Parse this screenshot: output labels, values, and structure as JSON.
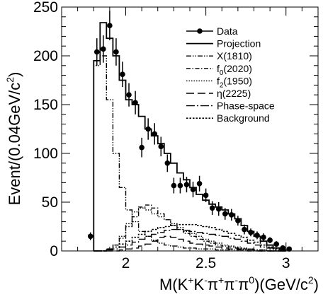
{
  "chart_data": {
    "type": "histogram",
    "xlabel": {
      "main": "M(K",
      "sup1": "+",
      "mid1": "K",
      "sup2": "-",
      "mid2": "π",
      "sup3": "+",
      "mid3": "π",
      "sup4": "-",
      "mid4": "π",
      "sup5": "0",
      "mid5": ")(GeV/c",
      "sup6": "2",
      "end": ")"
    },
    "ylabel": {
      "main": "Event/(0.04GeV/c",
      "sup": "2",
      "end": ")"
    },
    "xlim": [
      1.6,
      3.2
    ],
    "ylim": [
      0,
      250
    ],
    "xticks": [
      {
        "value": 2,
        "label": "2"
      },
      {
        "value": 2.5,
        "label": "2.5"
      },
      {
        "value": 3,
        "label": "3"
      }
    ],
    "yticks": [
      {
        "value": 0,
        "label": "0"
      },
      {
        "value": 50,
        "label": "50"
      },
      {
        "value": 100,
        "label": "100"
      },
      {
        "value": 150,
        "label": "150"
      },
      {
        "value": 200,
        "label": "200"
      },
      {
        "value": 250,
        "label": "250"
      }
    ],
    "bin_edges": [
      1.8,
      1.84,
      1.88,
      1.92,
      1.96,
      2.0,
      2.04,
      2.08,
      2.12,
      2.16,
      2.2,
      2.24,
      2.28,
      2.32,
      2.36,
      2.4,
      2.44,
      2.48,
      2.52,
      2.56,
      2.6,
      2.64,
      2.68,
      2.72,
      2.76,
      2.8,
      2.84,
      2.88,
      2.92,
      2.96,
      3.0
    ],
    "series": [
      {
        "name": "Data",
        "style": "points",
        "x": [
          1.78,
          1.82,
          1.86,
          1.9,
          1.94,
          1.98,
          2.02,
          2.06,
          2.1,
          2.14,
          2.18,
          2.22,
          2.26,
          2.3,
          2.34,
          2.38,
          2.42,
          2.46,
          2.5,
          2.54,
          2.58,
          2.62,
          2.66,
          2.7,
          2.74,
          2.78,
          2.82,
          2.86,
          2.9,
          2.94,
          2.98,
          3.02
        ],
        "y": [
          15,
          204,
          207,
          231,
          204,
          181,
          160,
          152,
          106,
          125,
          120,
          107,
          90,
          67,
          67,
          68,
          63,
          69,
          57,
          44,
          43,
          38,
          37,
          31,
          22,
          19,
          16,
          14,
          11,
          7,
          3,
          2
        ],
        "err": [
          4,
          14,
          14,
          15,
          14,
          13,
          12,
          12,
          10,
          11,
          11,
          10,
          9,
          8,
          8,
          8,
          8,
          8,
          7,
          7,
          7,
          6,
          6,
          5,
          5,
          4,
          4,
          4,
          3,
          3,
          2,
          1
        ]
      },
      {
        "name": "Projection",
        "style": "solid",
        "values": [
          195,
          234,
          218,
          200,
          175,
          155,
          150,
          138,
          125,
          118,
          110,
          100,
          90,
          80,
          73,
          65,
          58,
          52,
          48,
          45,
          42,
          38,
          33,
          26,
          20,
          15,
          10,
          6,
          3,
          1
        ]
      },
      {
        "name": "X(1810)",
        "style": "dash-dot-dot",
        "values": [
          190,
          200,
          155,
          100,
          65,
          42,
          30,
          20,
          15,
          11,
          8,
          6,
          5,
          4,
          3,
          3,
          2,
          2,
          2,
          1,
          1,
          1,
          1,
          1,
          0,
          0,
          0,
          0,
          0,
          0
        ]
      },
      {
        "name": "f_0(2020)",
        "style": "dash-dot",
        "values": [
          0,
          0,
          2,
          6,
          13,
          25,
          35,
          45,
          47,
          44,
          38,
          32,
          26,
          22,
          18,
          15,
          12,
          10,
          8,
          6,
          5,
          4,
          3,
          2,
          2,
          1,
          1,
          0,
          0,
          0
        ]
      },
      {
        "name": "f_2(1950)",
        "style": "dotted",
        "values": [
          0,
          0,
          2,
          6,
          15,
          28,
          40,
          44,
          42,
          38,
          35,
          32,
          28,
          24,
          20,
          18,
          15,
          12,
          10,
          8,
          6,
          5,
          4,
          3,
          2,
          1,
          1,
          0,
          0,
          0
        ]
      },
      {
        "name": "η(2225)",
        "style": "long-dash",
        "values": [
          0,
          0,
          0,
          0,
          1,
          2,
          3,
          5,
          7,
          10,
          14,
          15,
          14,
          12,
          10,
          8,
          7,
          6,
          5,
          4,
          3,
          2,
          2,
          1,
          1,
          0,
          0,
          0,
          0,
          0
        ]
      },
      {
        "name": "Phase-space",
        "style": "long-dash-dot",
        "values": [
          0,
          0,
          1,
          2,
          4,
          6,
          9,
          12,
          15,
          17,
          19,
          21,
          22,
          22,
          21,
          20,
          19,
          18,
          17,
          16,
          15,
          13,
          12,
          10,
          8,
          6,
          4,
          3,
          1,
          0
        ]
      },
      {
        "name": "Background",
        "style": "short-dot",
        "values": [
          0,
          0,
          2,
          4,
          7,
          10,
          14,
          17,
          20,
          22,
          24,
          25,
          26,
          27,
          27,
          27,
          26,
          25,
          24,
          22,
          20,
          18,
          16,
          14,
          11,
          9,
          6,
          4,
          2,
          1
        ]
      }
    ]
  }
}
